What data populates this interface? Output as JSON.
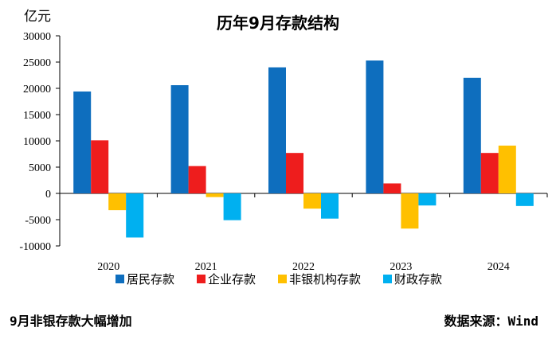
{
  "chart_data": {
    "type": "bar",
    "title": "历年9月存款结构",
    "unit_label": "亿元",
    "categories": [
      "2020",
      "2021",
      "2022",
      "2023",
      "2024"
    ],
    "series": [
      {
        "name": "居民存款",
        "color": "#0E6EBE",
        "values": [
          19400,
          20600,
          24000,
          25300,
          22000
        ]
      },
      {
        "name": "企业存款",
        "color": "#EE1D1D",
        "values": [
          10100,
          5200,
          7700,
          1900,
          7700
        ]
      },
      {
        "name": "非银机构存款",
        "color": "#FFC000",
        "values": [
          -3200,
          -700,
          -2900,
          -6700,
          9100
        ]
      },
      {
        "name": "财政存款",
        "color": "#00B0F0",
        "values": [
          -8400,
          -5100,
          -4800,
          -2300,
          -2400
        ]
      }
    ],
    "yticks": [
      30000,
      25000,
      20000,
      15000,
      10000,
      5000,
      0,
      -5000,
      -10000
    ],
    "ylim": [
      -10000,
      30000
    ],
    "grid": false,
    "legend_position": "bottom"
  },
  "footnote": "9月非银存款大幅增加",
  "source": "数据来源：Wind"
}
